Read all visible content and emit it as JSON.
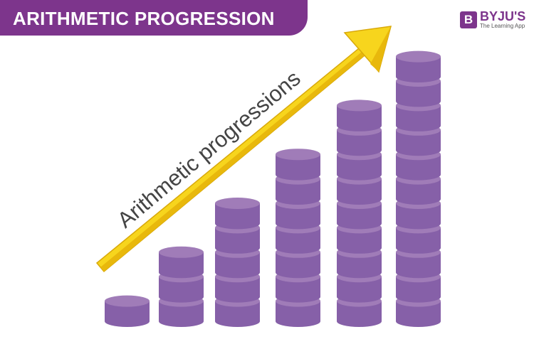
{
  "header": {
    "title": "ARITHMETIC PROGRESSION"
  },
  "logo": {
    "mark": "B",
    "name": "BYJU'S",
    "tagline": "The Learning App"
  },
  "arrow_label": "Arithmetic progressions",
  "stacks": [
    1,
    3,
    5,
    7,
    9,
    11
  ],
  "colors": {
    "brand": "#7d358c",
    "coin_body": "#8660a8",
    "coin_top": "#a07cb8",
    "arrow": "#f7d51d",
    "arrow_shade": "#e8b80c",
    "label": "#444444"
  }
}
